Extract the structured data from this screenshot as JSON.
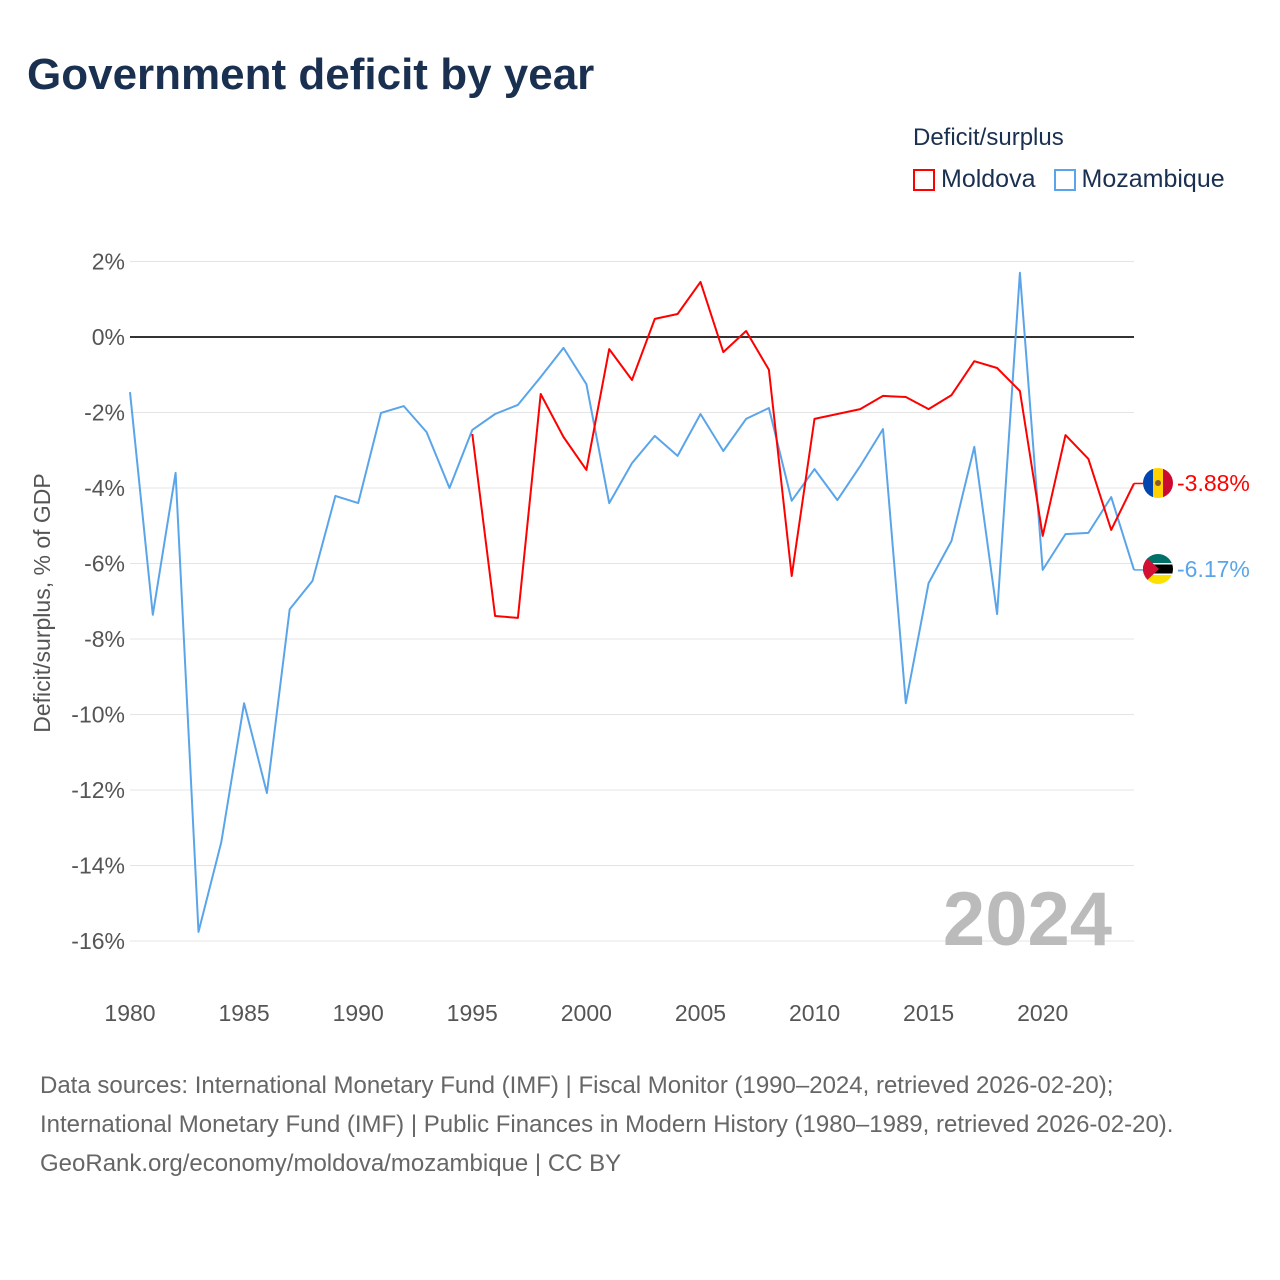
{
  "chart_data": {
    "type": "line",
    "title": "Government deficit by year",
    "xlabel": "",
    "ylabel": "Deficit/surplus, % of GDP",
    "xlim": [
      1980,
      2024
    ],
    "ylim": [
      -17,
      2.5
    ],
    "x_ticks": [
      1980,
      1985,
      1990,
      1995,
      2000,
      2005,
      2010,
      2015,
      2020
    ],
    "y_ticks": [
      2,
      0,
      -2,
      -4,
      -6,
      -8,
      -10,
      -12,
      -14,
      -16
    ],
    "y_tick_labels": [
      "2%",
      "0%",
      "-2%",
      "-4%",
      "-6%",
      "-8%",
      "-10%",
      "-12%",
      "-14%",
      "-16%"
    ],
    "x_tick_labels": [
      "1980",
      "1985",
      "1990",
      "1995",
      "2000",
      "2005",
      "2010",
      "2015",
      "2020"
    ],
    "grid": true,
    "legend_title": "Deficit/surplus",
    "legend_position": "top-right",
    "year_label": "2024",
    "series": [
      {
        "name": "Moldova",
        "color": "#ff0000",
        "end_label": "-3.88%",
        "x": [
          1995,
          1996,
          1997,
          1998,
          1999,
          2000,
          2001,
          2002,
          2003,
          2004,
          2005,
          2006,
          2007,
          2008,
          2009,
          2010,
          2011,
          2012,
          2013,
          2014,
          2015,
          2016,
          2017,
          2018,
          2019,
          2020,
          2021,
          2022,
          2023,
          2024
        ],
        "values": [
          -2.57,
          -7.39,
          -7.44,
          -1.51,
          -2.65,
          -3.52,
          -0.32,
          -1.14,
          0.48,
          0.61,
          1.46,
          -0.4,
          0.16,
          -0.87,
          -6.33,
          -2.17,
          -2.04,
          -1.91,
          -1.56,
          -1.59,
          -1.91,
          -1.54,
          -0.64,
          -0.82,
          -1.43,
          -5.27,
          -2.6,
          -3.23,
          -5.11,
          -3.88
        ]
      },
      {
        "name": "Mozambique",
        "color": "#5aa5ea",
        "end_label": "-6.17%",
        "x": [
          1980,
          1981,
          1982,
          1983,
          1984,
          1985,
          1986,
          1987,
          1988,
          1989,
          1990,
          1991,
          1992,
          1993,
          1994,
          1995,
          1996,
          1997,
          1998,
          1999,
          2000,
          2001,
          2002,
          2003,
          2004,
          2005,
          2006,
          2007,
          2008,
          2009,
          2010,
          2011,
          2012,
          2013,
          2014,
          2015,
          2016,
          2017,
          2018,
          2019,
          2020,
          2021,
          2022,
          2023,
          2024
        ],
        "values": [
          -1.46,
          -7.36,
          -3.6,
          -15.76,
          -13.38,
          -9.7,
          -12.08,
          -7.21,
          -6.46,
          -4.21,
          -4.4,
          -2.01,
          -1.83,
          -2.52,
          -4.0,
          -2.46,
          -2.04,
          -1.8,
          -1.06,
          -0.29,
          -1.25,
          -4.4,
          -3.34,
          -2.62,
          -3.15,
          -2.04,
          -3.02,
          -2.17,
          -1.88,
          -4.34,
          -3.5,
          -4.32,
          -3.42,
          -2.44,
          -9.7,
          -6.52,
          -5.4,
          -2.91,
          -7.34,
          1.7,
          -6.17,
          -5.22,
          -5.19,
          -4.24,
          -6.17
        ]
      }
    ]
  },
  "footer": {
    "sources": "Data sources: International Monetary Fund (IMF) | Fiscal Monitor (1990–2024, retrieved 2026-02-20); International Monetary Fund (IMF) | Public Finances in Modern History (1980–1989, retrieved 2026-02-20).",
    "credit": "GeoRank.org/economy/moldova/mozambique | CC BY"
  }
}
